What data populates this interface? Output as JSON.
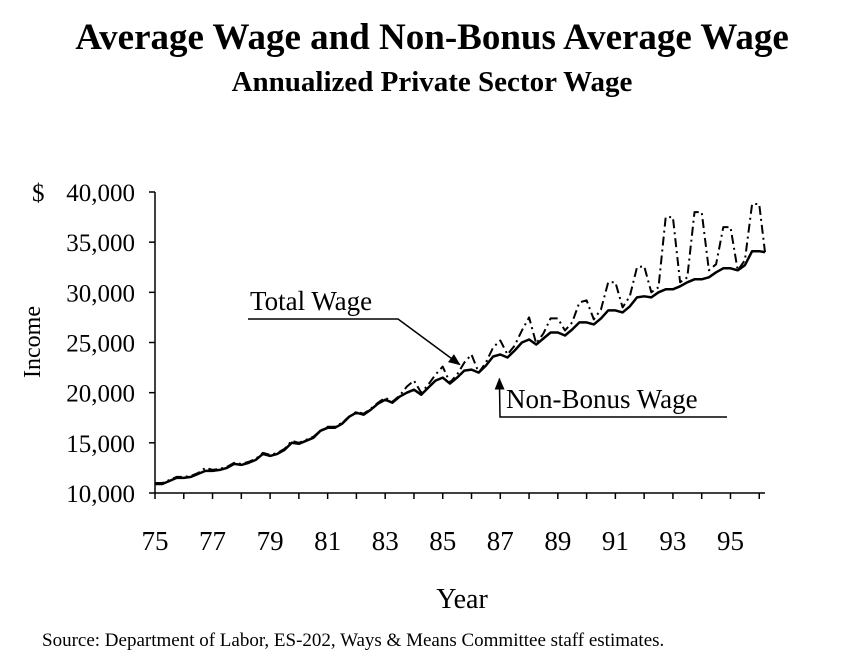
{
  "chart_data": {
    "type": "line",
    "title": "Average Wage and Non-Bonus Average Wage",
    "subtitle": "Annualized Private Sector Wage",
    "xlabel": "Year",
    "ylabel": "Income",
    "currency_symbol": "$",
    "xlim": [
      1975,
      1996.2
    ],
    "ylim": [
      10000,
      40000
    ],
    "x_ticks": [
      1975,
      1977,
      1979,
      1981,
      1983,
      1985,
      1987,
      1989,
      1991,
      1993,
      1995
    ],
    "x_tick_labels": [
      "75",
      "77",
      "79",
      "81",
      "83",
      "85",
      "87",
      "89",
      "91",
      "93",
      "95"
    ],
    "y_ticks": [
      10000,
      15000,
      20000,
      25000,
      30000,
      35000,
      40000
    ],
    "y_tick_labels": [
      "10,000",
      "15,000",
      "20,000",
      "25,000",
      "30,000",
      "35,000",
      "40,000"
    ],
    "grid": false,
    "series": [
      {
        "name": "Total Wage",
        "style": "dash-dot",
        "color": "#000000",
        "x": [
          1975.0,
          1975.25,
          1975.5,
          1975.75,
          1976.0,
          1976.25,
          1976.5,
          1976.75,
          1977.0,
          1977.25,
          1977.5,
          1977.75,
          1978.0,
          1978.25,
          1978.5,
          1978.75,
          1979.0,
          1979.25,
          1979.5,
          1979.75,
          1980.0,
          1980.25,
          1980.5,
          1980.75,
          1981.0,
          1981.25,
          1981.5,
          1981.75,
          1982.0,
          1982.25,
          1982.5,
          1982.75,
          1983.0,
          1983.25,
          1983.5,
          1983.75,
          1984.0,
          1984.25,
          1984.5,
          1984.75,
          1985.0,
          1985.25,
          1985.5,
          1985.75,
          1986.0,
          1986.25,
          1986.5,
          1986.75,
          1987.0,
          1987.25,
          1987.5,
          1987.75,
          1988.0,
          1988.25,
          1988.5,
          1988.75,
          1989.0,
          1989.25,
          1989.5,
          1989.75,
          1990.0,
          1990.25,
          1990.5,
          1990.75,
          1991.0,
          1991.25,
          1991.5,
          1991.75,
          1992.0,
          1992.25,
          1992.5,
          1992.75,
          1993.0,
          1993.25,
          1993.5,
          1993.75,
          1994.0,
          1994.25,
          1994.5,
          1994.75,
          1995.0,
          1995.25,
          1995.5,
          1995.75,
          1996.0,
          1996.2
        ],
        "values": [
          11000,
          11000,
          11300,
          11600,
          11600,
          11700,
          12000,
          12500,
          12300,
          12400,
          12600,
          13000,
          12900,
          13100,
          13400,
          14000,
          13800,
          14000,
          14400,
          15200,
          15000,
          15300,
          15600,
          16200,
          16600,
          16600,
          17000,
          17600,
          18100,
          17900,
          18400,
          19000,
          19500,
          19100,
          19700,
          20600,
          21200,
          20000,
          20800,
          21800,
          22600,
          21000,
          21800,
          23000,
          23800,
          22000,
          23000,
          24500,
          25200,
          23800,
          24700,
          26200,
          27500,
          24900,
          25900,
          27400,
          27400,
          26200,
          27000,
          29000,
          29200,
          27300,
          28300,
          31000,
          31000,
          28500,
          29600,
          32500,
          32600,
          30000,
          30500,
          37500,
          37500,
          31000,
          31500,
          38000,
          38000,
          32200,
          32800,
          36500,
          36500,
          32200,
          33200,
          38800,
          38800,
          34000
        ]
      },
      {
        "name": "Non-Bonus Wage",
        "style": "solid",
        "color": "#000000",
        "x": [
          1975.0,
          1975.25,
          1975.5,
          1975.75,
          1976.0,
          1976.25,
          1976.5,
          1976.75,
          1977.0,
          1977.25,
          1977.5,
          1977.75,
          1978.0,
          1978.25,
          1978.5,
          1978.75,
          1979.0,
          1979.25,
          1979.5,
          1979.75,
          1980.0,
          1980.25,
          1980.5,
          1980.75,
          1981.0,
          1981.25,
          1981.5,
          1981.75,
          1982.0,
          1982.25,
          1982.5,
          1982.75,
          1983.0,
          1983.25,
          1983.5,
          1983.75,
          1984.0,
          1984.25,
          1984.5,
          1984.75,
          1985.0,
          1985.25,
          1985.5,
          1985.75,
          1986.0,
          1986.25,
          1986.5,
          1986.75,
          1987.0,
          1987.25,
          1987.5,
          1987.75,
          1988.0,
          1988.25,
          1988.5,
          1988.75,
          1989.0,
          1989.25,
          1989.5,
          1989.75,
          1990.0,
          1990.25,
          1990.5,
          1990.75,
          1991.0,
          1991.25,
          1991.5,
          1991.75,
          1992.0,
          1992.25,
          1992.5,
          1992.75,
          1993.0,
          1993.25,
          1993.5,
          1993.75,
          1994.0,
          1994.25,
          1994.5,
          1994.75,
          1995.0,
          1995.25,
          1995.5,
          1995.75,
          1996.0,
          1996.2
        ],
        "values": [
          10900,
          10900,
          11200,
          11500,
          11500,
          11600,
          11900,
          12200,
          12200,
          12300,
          12500,
          12900,
          12800,
          13000,
          13300,
          13900,
          13700,
          13900,
          14300,
          15000,
          14900,
          15200,
          15500,
          16200,
          16500,
          16500,
          16900,
          17600,
          18000,
          17800,
          18300,
          18900,
          19300,
          19000,
          19600,
          20000,
          20300,
          19800,
          20500,
          21200,
          21500,
          20900,
          21500,
          22200,
          22300,
          22000,
          22700,
          23600,
          23800,
          23500,
          24200,
          25000,
          25300,
          24800,
          25400,
          26000,
          26000,
          25700,
          26300,
          27000,
          27000,
          26800,
          27400,
          28200,
          28200,
          28000,
          28600,
          29500,
          29600,
          29500,
          30000,
          30300,
          30300,
          30600,
          31000,
          31300,
          31300,
          31500,
          32000,
          32400,
          32400,
          32200,
          32700,
          34100,
          34100,
          34000
        ]
      }
    ],
    "annotations": [
      {
        "text": "Total Wage",
        "arrow_to": [
          1985.8,
          22000
        ]
      },
      {
        "text": "Non-Bonus Wage",
        "arrow_to": [
          1986.9,
          22000
        ]
      }
    ]
  },
  "source": "Source:  Department of Labor, ES-202, Ways & Means Committee staff estimates."
}
